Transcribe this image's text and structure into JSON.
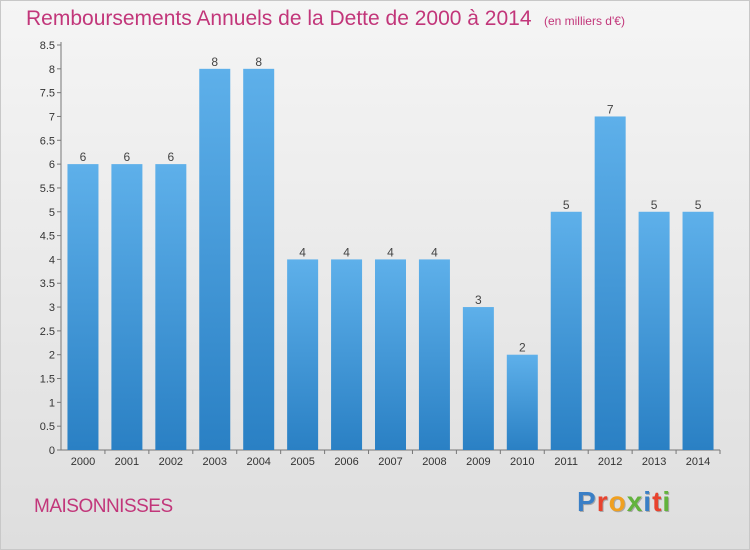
{
  "header": {
    "title": "Remboursements Annuels de la Dette de 2000 à 2014",
    "subtitle": "(en milliers d'€)"
  },
  "footer": {
    "commune": "MAISONNISSES",
    "brand": "Proxiti"
  },
  "colors": {
    "accent": "#c2367a",
    "bar_top": "#5eb0ea",
    "bar_bottom": "#2a80c4",
    "brand_letters": [
      "#3a7fc6",
      "#e8432e",
      "#f0a020",
      "#63b33d",
      "#3a7fc6",
      "#e8432e",
      "#63b33d"
    ]
  },
  "chart_data": {
    "type": "bar",
    "categories": [
      "2000",
      "2001",
      "2002",
      "2003",
      "2004",
      "2005",
      "2006",
      "2007",
      "2008",
      "2009",
      "2010",
      "2011",
      "2012",
      "2013",
      "2014"
    ],
    "values": [
      6,
      6,
      6,
      8,
      8,
      4,
      4,
      4,
      4,
      3,
      2,
      5,
      7,
      5,
      5
    ],
    "ylim": [
      0,
      8.5
    ],
    "yticks": [
      "0",
      "0.5",
      "1",
      "1.5",
      "2",
      "2.5",
      "3",
      "3.5",
      "4",
      "4.5",
      "5",
      "5.5",
      "6",
      "6.5",
      "7",
      "7.5",
      "8",
      "8.5"
    ],
    "grid": false,
    "xlabel": "",
    "ylabel": ""
  }
}
